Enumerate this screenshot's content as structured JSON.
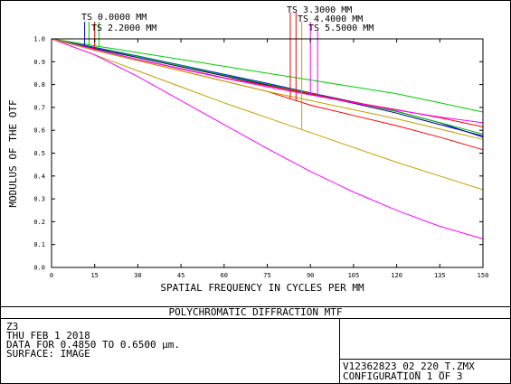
{
  "chart_data": {
    "type": "line",
    "xlabel": "SPATIAL FREQUENCY IN CYCLES PER MM",
    "ylabel": "MODULUS OF THE OTF",
    "xlim": [
      0,
      150
    ],
    "ylim": [
      0.0,
      1.0
    ],
    "x_ticks": [
      "0",
      "15",
      "30",
      "45",
      "60",
      "75",
      "90",
      "105",
      "120",
      "135",
      "150"
    ],
    "y_ticks": [
      "0.0",
      "0.1",
      "0.2",
      "0.3",
      "0.4",
      "0.5",
      "0.6",
      "0.7",
      "0.8",
      "0.9",
      "1.0"
    ],
    "grid": false,
    "legend_position": "top",
    "legend": [
      {
        "label": "TS 0.0000 MM"
      },
      {
        "label": "TS 2.2000 MM"
      },
      {
        "label": "TS 3.3000 MM"
      },
      {
        "label": "TS 4.4000 MM"
      },
      {
        "label": "TS 5.5000 MM"
      }
    ],
    "series": [
      {
        "color": "#0000ff",
        "x": [
          0,
          15,
          30,
          45,
          60,
          75,
          90,
          105,
          120,
          135,
          150
        ],
        "y": [
          1.0,
          0.963,
          0.925,
          0.885,
          0.845,
          0.805,
          0.764,
          0.724,
          0.683,
          0.633,
          0.57
        ]
      },
      {
        "color": "#00c000",
        "x": [
          0,
          15,
          30,
          45,
          60,
          75,
          90,
          105,
          120,
          135,
          150
        ],
        "y": [
          1.0,
          0.96,
          0.923,
          0.883,
          0.842,
          0.802,
          0.762,
          0.722,
          0.682,
          0.634,
          0.583
        ]
      },
      {
        "color": "#00d000",
        "x": [
          0,
          15,
          30,
          45,
          60,
          75,
          90,
          105,
          120,
          135,
          150
        ],
        "y": [
          1.0,
          0.97,
          0.94,
          0.91,
          0.88,
          0.85,
          0.82,
          0.79,
          0.76,
          0.72,
          0.68
        ]
      },
      {
        "color": "#ff0000",
        "x": [
          0,
          15,
          30,
          45,
          60,
          75,
          90,
          105,
          120,
          135,
          150
        ],
        "y": [
          1.0,
          0.95,
          0.905,
          0.86,
          0.815,
          0.77,
          0.71,
          0.665,
          0.62,
          0.57,
          0.515
        ]
      },
      {
        "color": "#000080",
        "x": [
          0,
          15,
          30,
          45,
          60,
          75,
          90,
          105,
          120,
          135,
          150
        ],
        "y": [
          1.0,
          0.958,
          0.918,
          0.878,
          0.838,
          0.798,
          0.758,
          0.718,
          0.675,
          0.625,
          0.575
        ]
      },
      {
        "color": "#ff0000",
        "x": [
          0,
          15,
          30,
          45,
          60,
          75,
          90,
          105,
          120,
          135,
          150
        ],
        "y": [
          1.0,
          0.955,
          0.91,
          0.87,
          0.83,
          0.795,
          0.76,
          0.723,
          0.69,
          0.655,
          0.615
        ]
      },
      {
        "color": "#c0a000",
        "x": [
          0,
          15,
          30,
          45,
          60,
          75,
          90,
          105,
          120,
          135,
          150
        ],
        "y": [
          1.0,
          0.93,
          0.86,
          0.79,
          0.72,
          0.655,
          0.59,
          0.525,
          0.46,
          0.4,
          0.34
        ]
      },
      {
        "color": "#ff00ff",
        "x": [
          0,
          15,
          30,
          45,
          60,
          75,
          90,
          105,
          120,
          135,
          150
        ],
        "y": [
          1.0,
          0.955,
          0.91,
          0.868,
          0.828,
          0.79,
          0.755,
          0.72,
          0.688,
          0.658,
          0.633
        ]
      },
      {
        "color": "#ff00ff",
        "x": [
          0,
          15,
          30,
          45,
          60,
          75,
          90,
          105,
          120,
          135,
          150
        ],
        "y": [
          1.0,
          0.93,
          0.835,
          0.73,
          0.625,
          0.52,
          0.42,
          0.33,
          0.25,
          0.18,
          0.125
        ]
      },
      {
        "color": "#c0a000",
        "x": [
          0,
          15,
          30,
          45,
          60,
          75,
          90,
          105,
          120,
          135,
          150
        ],
        "y": [
          1.0,
          0.95,
          0.905,
          0.86,
          0.815,
          0.77,
          0.73,
          0.69,
          0.65,
          0.605,
          0.56
        ]
      }
    ],
    "markers": [
      {
        "x": 11.5,
        "color": "#0000ff"
      },
      {
        "x": 13.0,
        "color": "#00c000"
      },
      {
        "x": 15.0,
        "color": "#ff0000"
      },
      {
        "x": 16.5,
        "color": "#00d000"
      },
      {
        "x": 83.0,
        "color": "#ff0000"
      },
      {
        "x": 85.0,
        "color": "#ff0000"
      },
      {
        "x": 87.0,
        "color": "#c0a000"
      },
      {
        "x": 90.0,
        "color": "#ff00ff"
      },
      {
        "x": 92.5,
        "color": "#ff00ff"
      }
    ]
  },
  "footer": {
    "title": "POLYCHROMATIC DIFFRACTION MTF",
    "info_lines": [
      "Z3",
      "THU FEB 1 2018",
      "DATA FOR 0.4850 TO 0.6500 µm.",
      "SURFACE: IMAGE"
    ],
    "file_name": "V12362823_02_220_T.ZMX",
    "configuration": "CONFIGURATION 1 OF 3"
  },
  "colors": {
    "frame": "#000000",
    "background": "#ffffff"
  }
}
